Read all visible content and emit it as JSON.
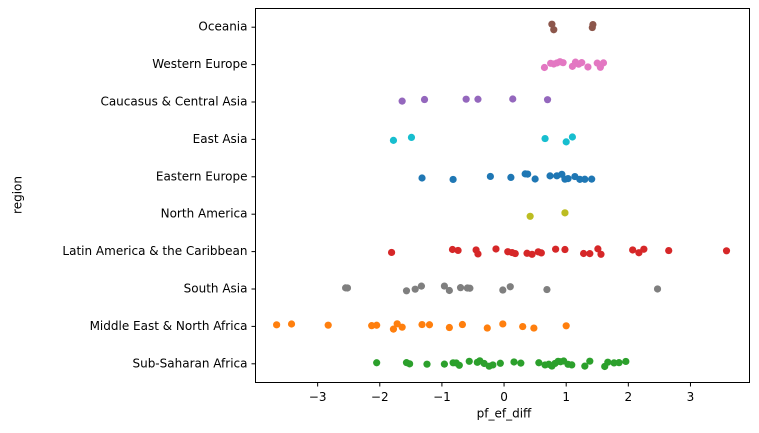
{
  "chart_data": {
    "type": "strip",
    "x_label": "pf_ef_diff",
    "y_label": "region",
    "categories": [
      "Oceania",
      "Western Europe",
      "Caucasus & Central Asia",
      "East Asia",
      "Eastern Europe",
      "North America",
      "Latin America & the Caribbean",
      "South Asia",
      "Middle East & North Africa",
      "Sub-Saharan Africa"
    ],
    "colors": [
      "#8c564b",
      "#e377c2",
      "#9467bd",
      "#17becf",
      "#1f77b4",
      "#bcbd22",
      "#d62728",
      "#7f7f7f",
      "#ff7f0e",
      "#2ca02c"
    ],
    "values": [
      [
        0.77,
        0.8,
        1.43,
        1.42
      ],
      [
        0.65,
        0.75,
        0.8,
        0.85,
        0.9,
        0.95,
        1.1,
        1.15,
        1.2,
        1.25,
        1.35,
        1.5,
        1.55,
        1.6
      ],
      [
        -1.64,
        -1.28,
        -0.61,
        -0.42,
        0.14,
        0.7
      ],
      [
        -1.78,
        -1.49,
        0.66,
        1.0,
        1.1
      ],
      [
        -1.32,
        -0.82,
        -0.22,
        0.11,
        0.34,
        0.38,
        0.5,
        0.74,
        0.85,
        0.93,
        0.98,
        1.03,
        1.14,
        1.22,
        1.3,
        1.41
      ],
      [
        0.42,
        0.98
      ],
      [
        -1.81,
        -0.83,
        -0.74,
        -0.45,
        -0.42,
        -0.13,
        0.06,
        0.13,
        0.18,
        0.37,
        0.45,
        0.55,
        0.6,
        0.83,
        0.98,
        1.28,
        1.38,
        1.51,
        1.56,
        2.07,
        2.17,
        2.25,
        2.65,
        3.58
      ],
      [
        -2.55,
        -2.52,
        -1.57,
        -1.43,
        -1.33,
        -0.96,
        -0.88,
        -0.7,
        -0.59,
        -0.55,
        -0.02,
        0.1,
        0.69,
        2.47
      ],
      [
        -3.66,
        -3.42,
        -2.83,
        -2.13,
        -2.05,
        -1.78,
        -1.72,
        -1.64,
        -1.32,
        -1.2,
        -0.88,
        -0.67,
        -0.27,
        -0.02,
        0.3,
        0.48,
        1.0
      ],
      [
        -2.05,
        -1.57,
        -1.52,
        -1.24,
        -0.96,
        -0.82,
        -0.77,
        -0.72,
        -0.56,
        -0.43,
        -0.39,
        -0.32,
        -0.24,
        -0.18,
        -0.06,
        0.16,
        0.27,
        0.56,
        0.66,
        0.72,
        0.77,
        0.82,
        0.87,
        0.91,
        0.96,
        1.03,
        1.09,
        1.3,
        1.38,
        1.62,
        1.67,
        1.77,
        1.85,
        1.96
      ]
    ],
    "xlim": [
      -4.0,
      3.95
    ],
    "xticks": [
      {
        "value": -3,
        "label": "−3"
      },
      {
        "value": -2,
        "label": "−2"
      },
      {
        "value": -1,
        "label": "−1"
      },
      0,
      1,
      2,
      3
    ]
  }
}
